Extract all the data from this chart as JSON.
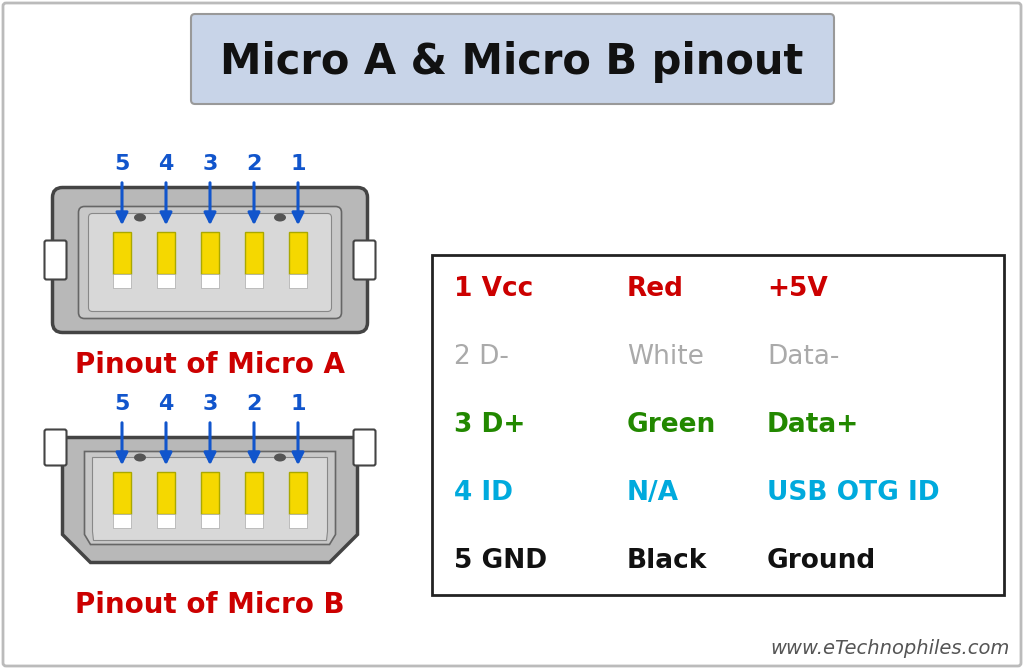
{
  "title": "Micro A & Micro B pinout",
  "title_fontsize": 30,
  "title_box_color": "#c8d4e8",
  "bg_color": "#ffffff",
  "connector_fill": "#b8b8b8",
  "connector_edge": "#444444",
  "connector_inner": "#c8c8c8",
  "connector_inner2": "#d8d8d8",
  "pin_fill": "#f5d800",
  "pin_edge": "#aaa800",
  "arrow_color": "#1155cc",
  "pin_label_color": "#1155cc",
  "pin_label_fontsize": 16,
  "label_a": "Pinout of Micro A",
  "label_b": "Pinout of Micro B",
  "label_color": "#cc0000",
  "label_fontsize": 20,
  "pin_numbers": [
    "5",
    "4",
    "3",
    "2",
    "1"
  ],
  "table_rows": [
    {
      "pin": "1 Vcc",
      "color_name": "Red",
      "description": "+5V",
      "color": "#cc0000",
      "weight": "bold"
    },
    {
      "pin": "2 D-",
      "color_name": "White",
      "description": "Data-",
      "color": "#aaaaaa",
      "weight": "normal"
    },
    {
      "pin": "3 D+",
      "color_name": "Green",
      "description": "Data+",
      "color": "#228800",
      "weight": "bold"
    },
    {
      "pin": "4 ID",
      "color_name": "N/A",
      "description": "USB OTG ID",
      "color": "#00aadd",
      "weight": "bold"
    },
    {
      "pin": "5 GND",
      "color_name": "Black",
      "description": "Ground",
      "color": "#111111",
      "weight": "bold"
    }
  ],
  "table_fontsize": 19,
  "watermark": "www.eTechnophiles.com",
  "watermark_fontsize": 14,
  "watermark_color": "#555555"
}
